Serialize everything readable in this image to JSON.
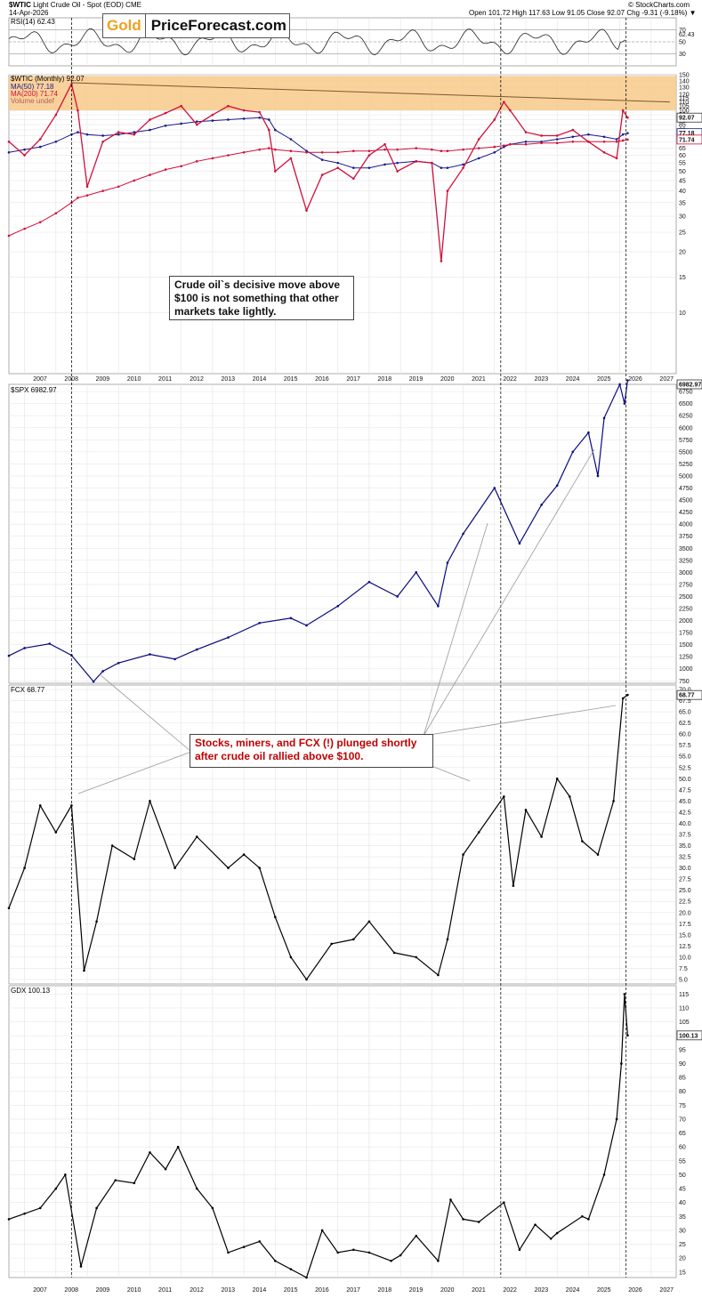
{
  "header": {
    "symbol": "$WTIC",
    "description": "Light Crude Oil - Spot (EOD) CME",
    "date": "14-Apr-2026",
    "quote": "Open 101.72  High 117.63  Low 91.05  Close 92.07  Chg -9.31 (-9.18%) ▼",
    "copyright": "© StockCharts.com"
  },
  "logo": {
    "part1": "Gold",
    "part2": "PriceForecast.com"
  },
  "rsi_panel": {
    "label": "RSI(14) 62.43",
    "ticks": [
      "70",
      "50",
      "30"
    ],
    "last_value": "62.43"
  },
  "oil_panel": {
    "label": "$WTIC (Monthly) 92.07",
    "legend": [
      "MA(50) 77.18",
      "MA(200) 71.74",
      "Volume undef"
    ],
    "ticks": [
      "150",
      "140",
      "130",
      "120",
      "115",
      "110",
      "105",
      "100",
      "95",
      "90",
      "85",
      "80",
      "75",
      "70",
      "65",
      "60",
      "55",
      "50",
      "45",
      "40",
      "35",
      "30",
      "25",
      "20",
      "15",
      "10"
    ],
    "last_labels": [
      "92.07",
      "77.18",
      "71.74"
    ]
  },
  "spx_panel": {
    "label": "$SPX 6982.97",
    "ticks": [
      "6750",
      "6500",
      "6250",
      "6000",
      "5750",
      "5500",
      "5250",
      "5000",
      "4750",
      "4500",
      "4250",
      "4000",
      "3750",
      "3500",
      "3250",
      "3000",
      "2750",
      "2500",
      "2250",
      "2000",
      "1750",
      "1500",
      "1250",
      "1000",
      "750"
    ],
    "last_label": "6982.97"
  },
  "fcx_panel": {
    "label": "FCX 68.77",
    "ticks": [
      "70.0",
      "67.5",
      "65.0",
      "62.5",
      "60.0",
      "57.5",
      "55.0",
      "52.5",
      "50.0",
      "47.5",
      "45.0",
      "42.5",
      "40.0",
      "37.5",
      "35.0",
      "32.5",
      "30.0",
      "27.5",
      "25.0",
      "22.5",
      "20.0",
      "17.5",
      "15.0",
      "12.5",
      "10.0",
      "7.5",
      "5.0"
    ],
    "last_label": "68.77"
  },
  "gdx_panel": {
    "label": "GDX 100.13",
    "ticks": [
      "115",
      "110",
      "105",
      "100",
      "95",
      "90",
      "85",
      "80",
      "75",
      "70",
      "65",
      "60",
      "55",
      "50",
      "45",
      "40",
      "35",
      "30",
      "25",
      "20",
      "15"
    ],
    "last_label": "100.13"
  },
  "x_axis": {
    "years": [
      "2007",
      "2008",
      "2009",
      "2010",
      "2011",
      "2012",
      "2013",
      "2014",
      "2015",
      "2016",
      "2017",
      "2018",
      "2019",
      "2020",
      "2021",
      "2022",
      "2023",
      "2024",
      "2025",
      "2026",
      "2027"
    ]
  },
  "annotations": {
    "oil_note": "Crude oil`s decisive move above $100 is not something that other markets take lightly.",
    "plunge_note": "Stocks, miners, and FCX (!) plunged shortly after crude oil rallied above $100."
  },
  "colors": {
    "oil_up": "#222222",
    "oil_down": "#d0103a",
    "ma50": "#1a1a8c",
    "ma200": "#d0103a",
    "spx": "#0a0a80",
    "fcx": "#000000",
    "gdx": "#000000",
    "resistance_zone": "#f8c98a",
    "callout_red": "#c00000"
  },
  "chart_data": [
    {
      "type": "line",
      "title": "$WTIC Light Crude Oil - Spot (EOD) monthly",
      "scale": "log",
      "x": [
        2006.5,
        2007.0,
        2007.5,
        2008.0,
        2008.5,
        2008.7,
        2009.0,
        2009.5,
        2010.0,
        2010.5,
        2011.0,
        2011.5,
        2012.0,
        2012.5,
        2013.0,
        2013.5,
        2014.0,
        2014.5,
        2014.8,
        2015.0,
        2015.5,
        2016.0,
        2016.5,
        2017.0,
        2017.5,
        2018.0,
        2018.5,
        2018.9,
        2019.5,
        2020.0,
        2020.3,
        2020.5,
        2021.0,
        2021.5,
        2022.0,
        2022.3,
        2022.5,
        2023.0,
        2023.5,
        2024.0,
        2024.5,
        2025.0,
        2025.5,
        2025.9,
        2026.1,
        2026.25
      ],
      "series": [
        {
          "values": [
            70,
            60,
            72,
            95,
            135,
            100,
            42,
            70,
            78,
            76,
            90,
            97,
            105,
            85,
            95,
            105,
            100,
            98,
            80,
            50,
            58,
            32,
            48,
            52,
            46,
            60,
            68,
            50,
            56,
            55,
            18,
            40,
            52,
            72,
            90,
            110,
            100,
            78,
            75,
            75,
            80,
            70,
            62,
            58,
            100,
            92.07
          ]
        },
        {
          "values": [
            62,
            64,
            66,
            70,
            76,
            78,
            76,
            75,
            76,
            78,
            80,
            84,
            86,
            88,
            89,
            90,
            91,
            92,
            90,
            80,
            72,
            63,
            57,
            55,
            52,
            52,
            54,
            55,
            56,
            55,
            52,
            52,
            54,
            58,
            62,
            66,
            68,
            70,
            70,
            72,
            74,
            76,
            74,
            72,
            76,
            77.18
          ]
        },
        {
          "values": [
            24,
            26,
            28,
            31,
            35,
            37,
            38,
            40,
            42,
            45,
            48,
            51,
            53,
            56,
            58,
            60,
            62,
            64,
            65,
            64,
            63,
            62,
            62,
            62,
            63,
            63,
            64,
            64,
            65,
            64,
            63,
            63,
            64,
            65,
            66,
            67,
            68,
            68,
            69,
            69,
            70,
            70,
            70,
            70,
            71,
            71.74
          ]
        }
      ],
      "resistance_zone": [
        100,
        148
      ],
      "ylim": [
        5,
        150
      ]
    },
    {
      "type": "line",
      "title": "$SPX",
      "x": [
        2006.5,
        2007.0,
        2007.8,
        2008.5,
        2009.2,
        2009.5,
        2010.0,
        2011.0,
        2011.8,
        2012.5,
        2013.5,
        2014.5,
        2015.5,
        2016.0,
        2017.0,
        2018.0,
        2018.9,
        2019.5,
        2020.2,
        2020.5,
        2021.0,
        2022.0,
        2022.8,
        2023.5,
        2024.0,
        2024.5,
        2025.0,
        2025.3,
        2025.5,
        2026.0,
        2026.15,
        2026.25
      ],
      "values": [
        1270,
        1430,
        1520,
        1280,
        735,
        950,
        1120,
        1300,
        1200,
        1400,
        1650,
        1950,
        2050,
        1900,
        2300,
        2800,
        2500,
        3000,
        2300,
        3200,
        3800,
        4750,
        3600,
        4400,
        4800,
        5500,
        5900,
        5000,
        6200,
        6900,
        6500,
        6982.97
      ],
      "ylim": [
        700,
        6900
      ]
    },
    {
      "type": "line",
      "title": "FCX",
      "x": [
        2006.5,
        2007.0,
        2007.5,
        2008.0,
        2008.5,
        2008.9,
        2009.3,
        2009.8,
        2010.5,
        2011.0,
        2011.8,
        2012.5,
        2013.5,
        2014.0,
        2014.5,
        2015.0,
        2015.5,
        2016.0,
        2016.8,
        2017.5,
        2018.0,
        2018.8,
        2019.5,
        2020.2,
        2020.5,
        2021.0,
        2021.5,
        2022.3,
        2022.6,
        2023.0,
        2023.5,
        2024.0,
        2024.4,
        2024.8,
        2025.3,
        2025.8,
        2026.1,
        2026.25
      ],
      "values": [
        21,
        30,
        44,
        38,
        44,
        7,
        18,
        35,
        32,
        45,
        30,
        37,
        30,
        33,
        30,
        19,
        10,
        5,
        13,
        14,
        18,
        11,
        10,
        6,
        14,
        33,
        38,
        46,
        26,
        43,
        37,
        50,
        46,
        36,
        33,
        45,
        68,
        68.77
      ],
      "ylim": [
        4,
        71
      ]
    },
    {
      "type": "line",
      "title": "GDX",
      "x": [
        2006.5,
        2007.0,
        2007.5,
        2008.0,
        2008.3,
        2008.8,
        2009.3,
        2009.9,
        2010.5,
        2011.0,
        2011.5,
        2011.9,
        2012.5,
        2013.0,
        2013.5,
        2014.0,
        2014.5,
        2015.0,
        2015.5,
        2016.0,
        2016.5,
        2017.0,
        2017.5,
        2018.0,
        2018.7,
        2019.0,
        2019.5,
        2020.2,
        2020.6,
        2021.0,
        2021.5,
        2022.3,
        2022.8,
        2023.3,
        2023.8,
        2024.0,
        2024.8,
        2025.0,
        2025.5,
        2025.9,
        2026.05,
        2026.15,
        2026.25
      ],
      "values": [
        34,
        36,
        38,
        45,
        50,
        17,
        38,
        48,
        47,
        58,
        52,
        60,
        45,
        38,
        22,
        24,
        26,
        19,
        16,
        13,
        30,
        22,
        23,
        22,
        19,
        21,
        28,
        19,
        41,
        34,
        33,
        40,
        23,
        32,
        27,
        29,
        35,
        34,
        50,
        70,
        90,
        115,
        100.13
      ],
      "ylim": [
        13,
        118
      ]
    }
  ]
}
